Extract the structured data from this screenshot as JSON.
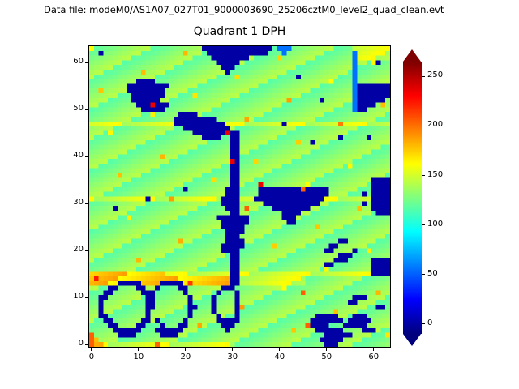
{
  "figure": {
    "data_file_label": "Data file: modeM0/AS1A07_027T01_9000003690_25206cztM0_level2_quad_clean.evt",
    "title": "Quadrant 1 DPH"
  },
  "chart_data": {
    "type": "heatmap",
    "title": "Quadrant 1 DPH",
    "x_range": [
      0,
      64
    ],
    "y_range": [
      0,
      64
    ],
    "x_ticks": [
      0,
      10,
      20,
      30,
      40,
      50,
      60
    ],
    "y_ticks": [
      0,
      10,
      20,
      30,
      40,
      50,
      60
    ],
    "colormap": "jet",
    "colorbar": {
      "ticks": [
        0,
        50,
        100,
        150,
        200,
        250
      ],
      "vmin": -10,
      "vmax": 265,
      "extend": "both",
      "over_color": "#7f0000",
      "under_color": "#00007f"
    },
    "value_key": {
      "B": 0,
      "b": 55,
      "c": 95,
      ".": 113,
      ",": 130,
      "g": 150,
      "y": 175,
      "o": 205,
      "r": 235
    },
    "rows_top_to_bottom": [
      ",,,,,,,,,,,,,,,,,,,,,,,,BBBBBBBBBBBBBBB,bbb,,,,,,,,,,,,,gggggggg",
      ",,B,,,,,,,,,,,,,,,,,,,,,,BBBBBBBBBBBBB,,,b,,,,,,,,,,,,,,bggggggg",
      ",,,,,,,,,,,,,,,,,,,,,,,,,,BBBBBBBB,,,,,,,,,,,,,,,,,,,,,,bggggggg",
      ",,,,,,,,,,,,,,,,,,,,,,,,,,,BBBBB,,,,,,,,,,,,,,,,,,,,,,,,b,,,,B,,",
      ",,,,,,,,,,,,,,,,,,,,,,,,,,,,BBB,,,,,,,,,,,,,,,,,,,,,,,,,b,,,,,,,",
      ",,,,,,,,,,,,,,,,,,,,,,,,,,,,,B,,,,,,,,,,,,,,,,,,,,,,,,,,b,,,,,,,",
      ",,,,,,,,,,,,,,,,,,,,,,,,,,,,,,,,,,,,,,,,,,,,B,,,,,,,,,,,b,,,,,,,",
      ",,,,,,,,,,BBBB,,,,,,,,,,,,,,,,,,,,,,,,,,,,,,,,,,,,,,,,,,b,,,,,,,",
      ",,,,,,,,BBBBBBBBB,,,,,,,,,,,,,,,,,,,,,,,,,,,,,,,,,,,,,,,bBBBBBBB",
      ",,,,,,,,BBBBBBBB,,,,,,,,,,,,,,,,,,,,,,,,,,,,,,,,,,,,,,,,bBBBBBBB",
      ",,,,,,,,,BBBBBBB,,,,,,,,,,,,,,,,,,,,,,,,,,,,,,,,,,,,,,,,bBBBBBBB",
      ",,,,,,,,,BBBBBB,,,,,,,,,,,,,,,,,,,,,,,,,,,,,,,,,,B,,,,,,bBBBBBB,",
      ",,,,,,,,,,BBBrBBB,,,,,,,,,,,,,,,,,,,,,,,,,,,,,,,,,,,,,,,bBBBB,,,",
      ",,,,,,,,,,,BBBBB,,,,,,,,,,,,,,,,,,,,,,,,,,,,,,,,,,,,,,,,bBB,,,,,",
      ",,,,,,,,,,,,,,,,,,,BBBB,,,,,,,,,,,,,,,,,,,,,,,,,,,,,,,,,,,,,,,,,",
      ",,,,,,,,,,,,,,,,,,BBBBBBBBB,,,,,,,,,,,,,,,,,,,,,,,,,,,,,,,,,,,,,",
      "ggggggggggggggggggBBBBBBBBBBBggggggggggggBgggggggggggggggggggggg",
      ",,,,,,,,,,,,,,,,,,,,BBBBBBBBBB,,,,,,,,,,,,,,,,,,,,,,,,,,,,,,,,,,",
      ",,,,,,,,,,,,,,,,,,,,,,BBBBBBBrBB,,,,,,,,,,,,,,,,,,,,,,,,,,,,,,,,",
      ",,,,,,,,,,,,,,,,,,,,,,,,BBBB,,BB,,,,,,,,,,,,,,,,,,,,,B,,,,,B,,,,",
      ",,,,,,,,,,,,,,,,,,,,,,,,,,,,,,BB,,,,,,,,,,,,,,,B,,,,,,,,,,,,,,,,",
      ",,,,,,,,,,,,,,,,,,,,,,,,,,,,,,BB,,,,,,,,,,,,,,,,,,,,,,,,,,,,,,,,",
      ",,,,,,,,,,,,,,,,,,,,,,,,,,,,,,BB,,,,,,,,,,,,,,,,,,,,,,,,,,,,,,,,",
      ",,,,,,,,,,,,,,,,,,,,,,,,,,,,,,BB,,,,,,,,,,,,,,,,,,,,,,,,,,,,,,,,",
      ",,,,,,,,,,,,,,,,,,,,,,,,,,,,,,rB,,,,,,,,,,,,,,,,,,,,,,,,,,,,,,,,",
      ",,,,,,,,,,,,,,,,,,,,,,,,,,,,,,BB,,,,,,,,,,,,,,,,,,,,,,,,,,,,,,,,",
      ",,,,,,,,,,,,,,,,,,,,,,,,,,,,,,BB,,,,,,,,,,,,,,,,,,,,,,,,,,,,,,,,",
      ",,,,,,,,,,,,,,,,,,,,,,,,,,,,,,BB,,,,,,,,,,,,,,,,,,,,,,,,,,,,,,,,",
      ",,,,,,,,,,,,,,,,,,,,,,,,,,,,,,BB,,,,,,,,,,,,,,,,,,,,,,,,,,,,BBBB",
      ",,,,,,,,,,,,,,,,,,,,,,,,,,,,,,BB,,,,r,,,,,,,,,,,,,,,,,,,,,,,BBBB",
      ",,,,,,,,,,,,,,,,,,,,B,,,,,,,,BBB,,,,BBBBBBBBBoBBBBB,,,,,,,,,BBBB",
      ",,,,,,,,,,,,,,,,,,,,,,,,,,,,,BBB,,,,BBBBBBBBBBBBBBB,,,,,,,B,BBBB",
      "ggggggggggggBgggggggggggggggBBBBgggBBBBBBBBBBBBBBBggggggggggBBBB",
      ",,,,,,,,,,,,,,,,,,,,,,,,,,,,BBBB,,,,,BBBBBBBBBBBB,,,,,,,,,B,BBBB",
      ",,,,,B,,,,,,,,,,,,,,,,,,,,,,,BBB,o,,,,,BBBBBBBB,,,,,,,,,,,,,BBBB",
      ",,,,,,,,,,,,,,,,,,,,,,,,,,,,,,BB,,,,,,,,,BBBB,,,,,,,,,,,,,,,,BBB",
      ",,,,,,,,,,,,,,,,,,,,,,,,,,,BBBBBBB,,,,,,,BBB,,,,,,,,,,,,,,,,,,,,",
      ",,,,,,,,,,,,,,,,,,,,,,,,,,,,BBBBBB,,,,,,,,BB,,,,,,,,,,,,,,,,,,,,",
      ",,,,,,,,,,,,,,,,,,,,,,,,,,,,BBBBB,,,,,,,,,,,,,,,,,,,,,,,,,,,,,,,",
      ",,,,,,,,,,,,,,,,,,,,,,,,,,,,,BBBB,,,,,,,,,,,,,,,,,,,,,,,,,,,,,,,",
      ",,,,,,,,,,,,,,,,,,,,,,,,,,,,,BBB,,,,,,,,,,,,,,,,,,,,,,,,,,,,,,,,",
      ",,,,,,,,,,,,,,,,,,,,,,,,,,,,,BBBB,,,,,,,,,,,,,,,,,,,,BB,,,,,,,,,",
      ",,,,,,,,,,,,,,,,,,,,,,,,,,,,BBBBB,,,,,,,,,,,,,,,,,,BB,,,,,,,,,,,",
      ",,,,,,,,,,,,,,,,,,,,,,,,,,,,BBBB,,,,,,,,,,,,,,,,,,BB,,,,B,,,,,,,",
      ",,,,,,,,,,,,,,,,,,,,,,,,,,,,,,BB,,,,,,,,,,,,,,,,,,,,,BBB,,,,,,,,",
      ",,,,,,,,,,,,,,,,,,,,,,,,,,,,,,BB,,,,,,,,,,,,,,,,,,,,BBB,,,,,BBBB",
      ",,,,,,,,,,,,,,,,,,,,,,,,,,,,,,BB,,,,,,,,,,,,,,,,,,BB,,,,,,,,BBBB",
      ",,,,,,,,,,,,,,,,,,,,,,,,,,,,,,BB,,,,,,,,,,,,,,,,,,,,,,,,,,,,BBBB",
      "yyyyyyyyyyyyyyyyggggggggggggggBBggggggggggggggggggggggggggggBBBB",
      "yyyyyyyyyyyyyyyyyyyyyyyyyyyyyyBBgggggggggggggg,,,,,,,,,,,,,,,,,,",
      "yyyyyyBBBBByyyyBBBBByyyyyyyyyyBBgggggggggggggg,,,,,,,,,,,,,,,,,,",
      ",,,,BB,,,,BB,,B,,,,BB,,,,,,,BBB,,,,,,,,,,,,,,,,,,,,,,,,,,,,,,,,,",
      ",,,BB,,,,,,BBB,,,,,,B,,,,,,B,,,B,,,,,,,,,,,,,o,,,,,,,,,,,,,,,,,,",
      ",,BB,,,,,,,,BB,,,,,,,B,,,,B,,,,B,,,,,,,,,,,,,,,,,,,,,,,,BBB,,,,,",
      ",,B,,,,,,,,,BB,,,,,,,B,,,,B,,,,B,,,,,,,,,,,,,,,,,,,,,,,BB,,,,,,,",
      ",,B,,,,,,,,,BB,,,,,,,BB,,,B,,,,B,,,,,,,,,,,,,,,,,,,,,,,,,,,,,BB,",
      ",,B,,,,,,,,,B,,,,,,,,B,,,,B,,,,B,,,,,,,,,,,,,,,,,,,,,,,,,,,,,,,,",
      ",,BB,,,,,,,,B,,,,,,,,B,,,,,B,,,B,,,,,,,,,,,,,,,,BBBBB,,,BBB,,,,,",
      ",,,BB,,,,,,BB,B,,,,,B,,,,,,BBBBB,,,,,,,,,,,,,,,BBBBBBB,BBBBB,,,,",
      ",,,,BB,,,,BB,,,B,,,BB,,,,,,,BBB,,,,,,,,,,,,,,,oBBBB,,,BBBBB,,,,,",
      ",,,,,BBBBBB,,,BBBBBB,,,,,,,,,B,,,,,,,,,,,,,,,,,,BBBBBB,,,,BBB,,,",
      "o,,,,,BBBB,,,,,BBBB,,,,,,,,,,,,,,,,,,,,,,,,,,,,,,,BBBBBB,,,,,,,,",
      "oy,,,,,,,,,,,,,,,,,,,,,,,,,,,,,,,,,,,,,,,,,,,,,,,BBBBB,,,,,,,,,,",
      "oyygggggggggggggggggggggggggggg,,,,,,,,,,,,,,,,,,,BBB,,,,,,,,,,,"
    ]
  }
}
